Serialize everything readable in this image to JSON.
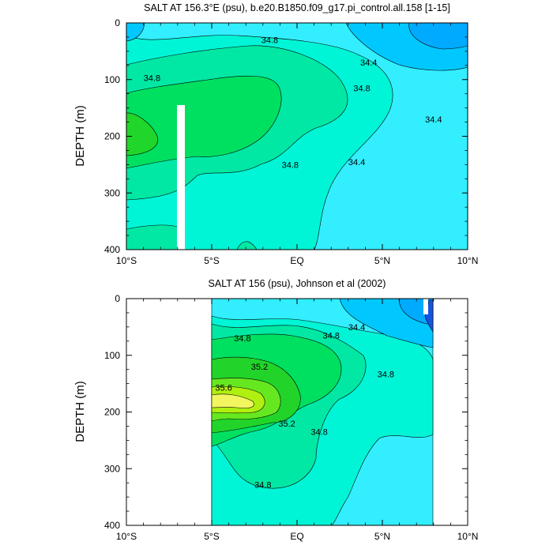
{
  "chart_data": [
    {
      "type": "contour",
      "title": "SALT AT 156.3°E (psu), b.e20.B1850.f09_g17.pi_control.all.158 [1-15]",
      "ylabel": "DEPTH (m)",
      "x_ticks": [
        {
          "label": "10°S",
          "value": -10
        },
        {
          "label": "5°S",
          "value": -5
        },
        {
          "label": "EQ",
          "value": 0
        },
        {
          "label": "5°N",
          "value": 5
        },
        {
          "label": "10°N",
          "value": 10
        }
      ],
      "y_ticks": [
        0,
        100,
        200,
        300,
        400
      ],
      "xlim": [
        -10,
        10
      ],
      "ylim": [
        400,
        0
      ],
      "contour_labels": [
        {
          "text": "34.8",
          "lat": -1.6,
          "depth": 30
        },
        {
          "text": "34.8",
          "lat": -8.5,
          "depth": 97
        },
        {
          "text": "34.4",
          "lat": 4.2,
          "depth": 70
        },
        {
          "text": "34.8",
          "lat": 3.8,
          "depth": 115
        },
        {
          "text": "34.4",
          "lat": 8.0,
          "depth": 170
        },
        {
          "text": "34.8",
          "lat": -0.4,
          "depth": 250
        },
        {
          "text": "34.4",
          "lat": 3.5,
          "depth": 245
        }
      ],
      "missing_data": [
        {
          "lat_range": [
            -6.2,
            -5.7
          ],
          "depth_range": [
            145,
            400
          ]
        }
      ]
    },
    {
      "type": "contour",
      "title": "SALT AT 156 (psu), Johnson et al (2002)",
      "ylabel": "DEPTH (m)",
      "x_ticks": [
        {
          "label": "10°S",
          "value": -10
        },
        {
          "label": "5°S",
          "value": -5
        },
        {
          "label": "EQ",
          "value": 0
        },
        {
          "label": "5°N",
          "value": 5
        },
        {
          "label": "10°N",
          "value": 10
        }
      ],
      "y_ticks": [
        0,
        100,
        200,
        300,
        400
      ],
      "xlim": [
        -10,
        10
      ],
      "ylim": [
        400,
        0
      ],
      "data_lat_range": [
        -5,
        8
      ],
      "contour_labels": [
        {
          "text": "34.4",
          "lat": 3.5,
          "depth": 50
        },
        {
          "text": "34.8",
          "lat": -3.2,
          "depth": 70
        },
        {
          "text": "34.8",
          "lat": 2.0,
          "depth": 65
        },
        {
          "text": "35.2",
          "lat": -2.2,
          "depth": 120
        },
        {
          "text": "34.8",
          "lat": 5.2,
          "depth": 133
        },
        {
          "text": "35.6",
          "lat": -4.3,
          "depth": 157
        },
        {
          "text": "35.2",
          "lat": -0.6,
          "depth": 220
        },
        {
          "text": "34.8",
          "lat": 1.3,
          "depth": 235
        },
        {
          "text": "34.8",
          "lat": -2.0,
          "depth": 328
        }
      ]
    }
  ]
}
